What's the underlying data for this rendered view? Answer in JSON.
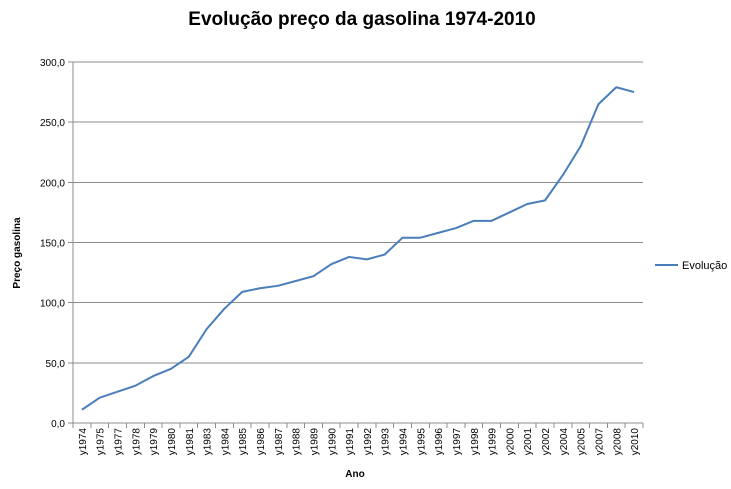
{
  "chart_data": {
    "type": "line",
    "title": "Evolução preço da gasolina 1974-2010",
    "xlabel": "Ano",
    "ylabel": "Preço gasolina",
    "ylim": [
      0,
      300
    ],
    "yticks": [
      "0,0",
      "50,0",
      "100,0",
      "150,0",
      "200,0",
      "250,0",
      "300,0"
    ],
    "grid": true,
    "legend_position": "right",
    "categories": [
      "y1974",
      "y1975",
      "y1977",
      "y1978",
      "y1979",
      "y1980",
      "y1981",
      "y1983",
      "y1984",
      "y1985",
      "y1986",
      "y1987",
      "y1988",
      "y1989",
      "y1990",
      "y1991",
      "y1992",
      "y1993",
      "y1994",
      "y1995",
      "y1996",
      "y1997",
      "y1998",
      "y1999",
      "y2000",
      "y2001",
      "y2002",
      "y2004",
      "y2005",
      "y2007",
      "y2008",
      "y2010"
    ],
    "series": [
      {
        "name": "Evolução",
        "color": "#4a7ebb",
        "values": [
          11,
          21,
          26,
          31,
          39,
          45,
          55,
          78,
          95,
          109,
          112,
          114,
          118,
          122,
          132,
          138,
          136,
          140,
          154,
          154,
          158,
          162,
          168,
          168,
          175,
          182,
          185,
          206,
          230,
          265,
          279,
          275
        ]
      }
    ]
  }
}
